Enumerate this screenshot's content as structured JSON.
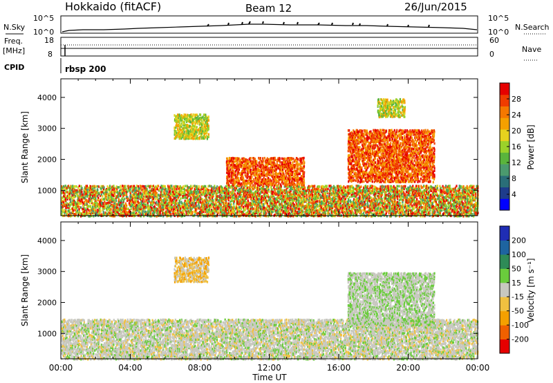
{
  "header": {
    "station": "Hokkaido (fitACF)",
    "beam": "Beam 12",
    "date": "26/Jun/2015"
  },
  "params": {
    "nsky_label": "N.Sky",
    "nsearch_label": "N.Search",
    "freq_label": "Freq.",
    "freq_unit": "[MHz]",
    "nave_label": "Nave",
    "cpid_label": "CPID",
    "cpid_value": "rbsp 200",
    "left_ticks_nsky": [
      "10^5",
      "10^0"
    ],
    "right_ticks_nsky": [
      "10^5",
      "10^0"
    ],
    "left_ticks_freq": [
      "18",
      "8"
    ],
    "right_ticks_freq": [
      "60",
      "0"
    ]
  },
  "x_axis": {
    "label": "Time UT",
    "ticks": [
      "00:00",
      "04:00",
      "08:00",
      "12:00",
      "16:00",
      "20:00",
      "00:00"
    ]
  },
  "chart_data": [
    {
      "type": "heatmap",
      "panel": "power",
      "ylabel": "Slant Range [km]",
      "ylim": [
        180,
        4600
      ],
      "xlim_hours": [
        0,
        24
      ],
      "yticks": [
        "1000",
        "2000",
        "3000",
        "4000"
      ],
      "colorbar": {
        "label": "Power [dB]",
        "ticks": [
          "4",
          "8",
          "12",
          "16",
          "20",
          "24",
          "28"
        ],
        "colors": [
          "#0000ff",
          "#1e3c8c",
          "#2a6e78",
          "#4b9a6e",
          "#5ab43c",
          "#9bd22a",
          "#e6d21e",
          "#f5a000",
          "#f57800",
          "#f03c00",
          "#e60000"
        ]
      },
      "regions": [
        {
          "t": [
            0.0,
            24.0
          ],
          "r": [
            200,
            1200
          ],
          "level": "mixed-high"
        },
        {
          "t": [
            6.5,
            8.5
          ],
          "r": [
            2700,
            3500
          ],
          "level": "medium"
        },
        {
          "t": [
            9.5,
            14.0
          ],
          "r": [
            1200,
            2100
          ],
          "level": "high"
        },
        {
          "t": [
            16.5,
            21.5
          ],
          "r": [
            1300,
            3000
          ],
          "level": "high"
        },
        {
          "t": [
            18.2,
            19.8
          ],
          "r": [
            3400,
            4000
          ],
          "level": "medium"
        }
      ]
    },
    {
      "type": "heatmap",
      "panel": "velocity",
      "ylabel": "Slant Range [km]",
      "ylim": [
        180,
        4600
      ],
      "xlim_hours": [
        0,
        24
      ],
      "yticks": [
        "1000",
        "2000",
        "3000",
        "4000"
      ],
      "colorbar": {
        "label": "Velocity [m s⁻¹]",
        "ticks": [
          "200",
          "100",
          "50",
          "15",
          "-15",
          "-50",
          "-100",
          "-200"
        ],
        "colors": [
          "#1f2db4",
          "#1e64a0",
          "#2e8b57",
          "#6acc3c",
          "#c8c8c0",
          "#f0c040",
          "#f5a000",
          "#f06000",
          "#e60000"
        ]
      },
      "regions": [
        {
          "t": [
            0.0,
            24.0
          ],
          "r": [
            200,
            1500
          ],
          "level": "ground-scatter"
        },
        {
          "t": [
            6.5,
            8.5
          ],
          "r": [
            2700,
            3500
          ],
          "level": "negative"
        },
        {
          "t": [
            16.5,
            21.5
          ],
          "r": [
            1300,
            3000
          ],
          "level": "positive"
        }
      ]
    }
  ]
}
